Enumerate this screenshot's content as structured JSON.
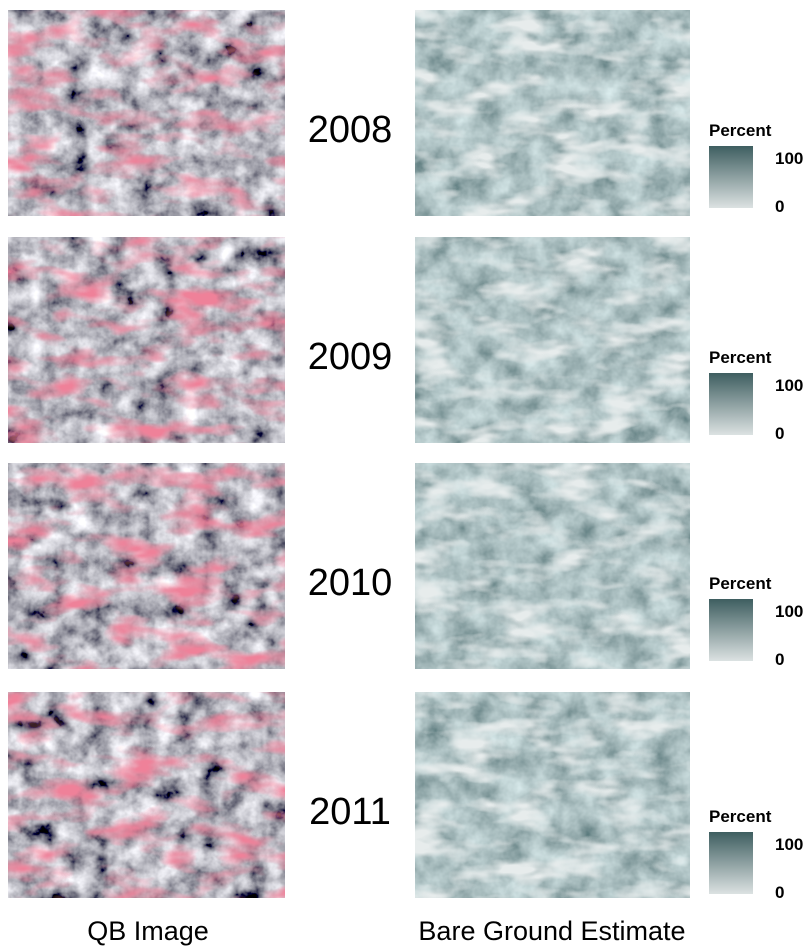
{
  "rows": [
    {
      "year": "2008",
      "legend": {
        "title": "Percent",
        "max": 100,
        "min": 0
      }
    },
    {
      "year": "2009",
      "legend": {
        "title": "Percent",
        "max": 100,
        "min": 0
      }
    },
    {
      "year": "2010",
      "legend": {
        "title": "Percent",
        "max": 100,
        "min": 0
      }
    },
    {
      "year": "2011",
      "legend": {
        "title": "Percent",
        "max": 100,
        "min": 0
      }
    }
  ],
  "footer": {
    "left": "QB Image",
    "right": "Bare Ground Estimate"
  }
}
